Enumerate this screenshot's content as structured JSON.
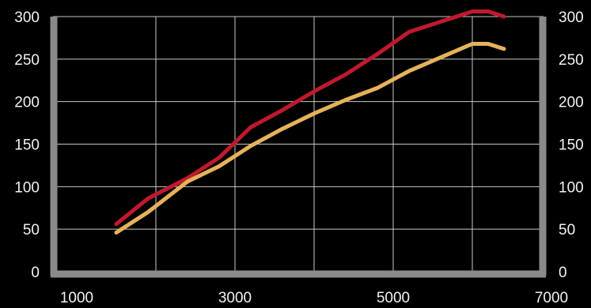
{
  "chart_data": {
    "type": "line",
    "x_ticks": [
      1000,
      3000,
      5000,
      7000
    ],
    "y_ticks": [
      0,
      50,
      100,
      150,
      200,
      250,
      300
    ],
    "xlim": [
      700,
      6900
    ],
    "ylim": [
      0,
      300
    ],
    "grid": true,
    "series": [
      {
        "color": "#c0192e",
        "x": [
          1500,
          1900,
          2400,
          2800,
          3200,
          3600,
          4000,
          4400,
          4800,
          5200,
          5600,
          6000,
          6200,
          6400
        ],
        "y": [
          56,
          86,
          110,
          134,
          170,
          190,
          212,
          232,
          256,
          282,
          294,
          306,
          306,
          300
        ]
      },
      {
        "color": "#e6b25a",
        "x": [
          1500,
          1900,
          2400,
          2800,
          3200,
          3600,
          4000,
          4400,
          4800,
          5200,
          5600,
          6000,
          6200,
          6400
        ],
        "y": [
          46,
          70,
          106,
          124,
          148,
          168,
          186,
          202,
          216,
          236,
          252,
          268,
          268,
          262
        ]
      }
    ],
    "axis_color": "#8a8a8a",
    "grid_color": "#c8c8c8"
  }
}
